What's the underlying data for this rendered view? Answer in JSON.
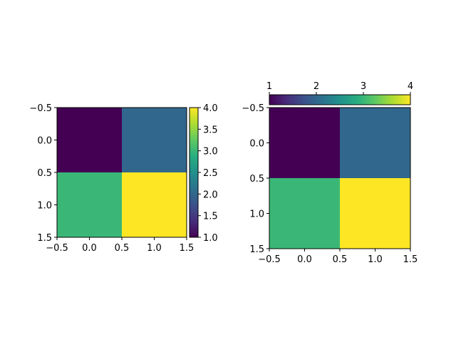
{
  "chart_data": [
    {
      "type": "heatmap",
      "title": "",
      "xlabel": "",
      "ylabel": "",
      "grid": false,
      "colormap": "viridis",
      "values": [
        [
          1,
          2
        ],
        [
          3,
          4
        ]
      ],
      "x_centers": [
        0,
        1
      ],
      "y_centers": [
        0,
        1
      ],
      "xlim": [
        -0.5,
        1.5
      ],
      "ylim": [
        1.5,
        -0.5
      ],
      "x_ticks": [
        "−0.5",
        "0.0",
        "0.5",
        "1.0",
        "1.5"
      ],
      "y_ticks": [
        "−0.5",
        "0.0",
        "0.5",
        "1.0",
        "1.5"
      ],
      "colorbar": {
        "placement": "right",
        "range": [
          1.0,
          4.0
        ],
        "ticks": [
          "1.0",
          "1.5",
          "2.0",
          "2.5",
          "3.0",
          "3.5",
          "4.0"
        ]
      }
    },
    {
      "type": "heatmap",
      "title": "",
      "xlabel": "",
      "ylabel": "",
      "grid": false,
      "colormap": "viridis",
      "values": [
        [
          1,
          2
        ],
        [
          3,
          4
        ]
      ],
      "x_centers": [
        0,
        1
      ],
      "y_centers": [
        0,
        1
      ],
      "xlim": [
        -0.5,
        1.5
      ],
      "ylim": [
        1.5,
        -0.5
      ],
      "x_ticks": [
        "−0.5",
        "0.0",
        "0.5",
        "1.0",
        "1.5"
      ],
      "y_ticks": [
        "−0.5",
        "0.0",
        "0.5",
        "1.0",
        "1.5"
      ],
      "colorbar": {
        "placement": "top",
        "range": [
          1,
          4
        ],
        "ticks": [
          "1",
          "2",
          "3",
          "4"
        ]
      }
    }
  ],
  "colors": {
    "v1": "#440154",
    "v2": "#31688e",
    "v3": "#35b779",
    "v4": "#fde725"
  }
}
